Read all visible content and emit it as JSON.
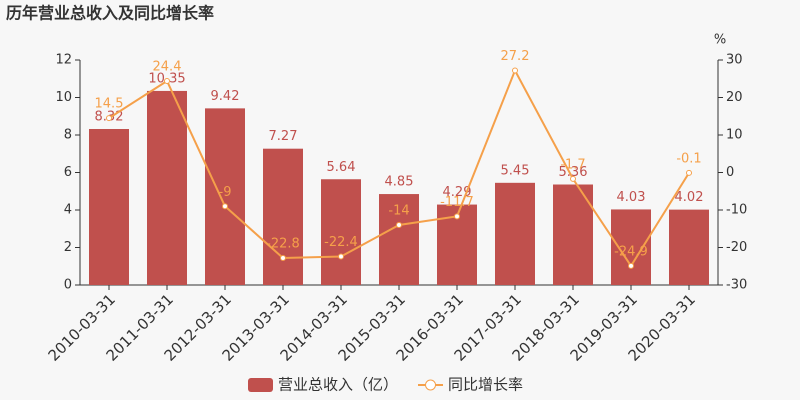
{
  "chart_data": {
    "type": "bar-line",
    "title": "历年营业总收入及同比增长率",
    "y2_unit": "%",
    "categories": [
      "2010-03-31",
      "2011-03-31",
      "2012-03-31",
      "2013-03-31",
      "2014-03-31",
      "2015-03-31",
      "2016-03-31",
      "2017-03-31",
      "2018-03-31",
      "2019-03-31",
      "2020-03-31"
    ],
    "series": [
      {
        "name": "营业总收入（亿）",
        "type": "bar",
        "color": "#c0504d",
        "values": [
          8.32,
          10.35,
          9.42,
          7.27,
          5.64,
          4.85,
          4.29,
          5.45,
          5.36,
          4.03,
          4.02
        ]
      },
      {
        "name": "同比增长率",
        "type": "line",
        "axis": "y2",
        "color": "#f5a04a",
        "values": [
          14.5,
          24.4,
          -9,
          -22.8,
          -22.4,
          -14,
          -11.7,
          27.2,
          -1.7,
          -24.9,
          -0.1
        ]
      }
    ],
    "ylim": [
      0,
      12
    ],
    "yticks": [
      0,
      2,
      4,
      6,
      8,
      10,
      12
    ],
    "y2lim": [
      -30,
      30
    ],
    "y2ticks": [
      -30,
      -20,
      -10,
      0,
      10,
      20,
      30
    ],
    "legend": "bottom"
  }
}
